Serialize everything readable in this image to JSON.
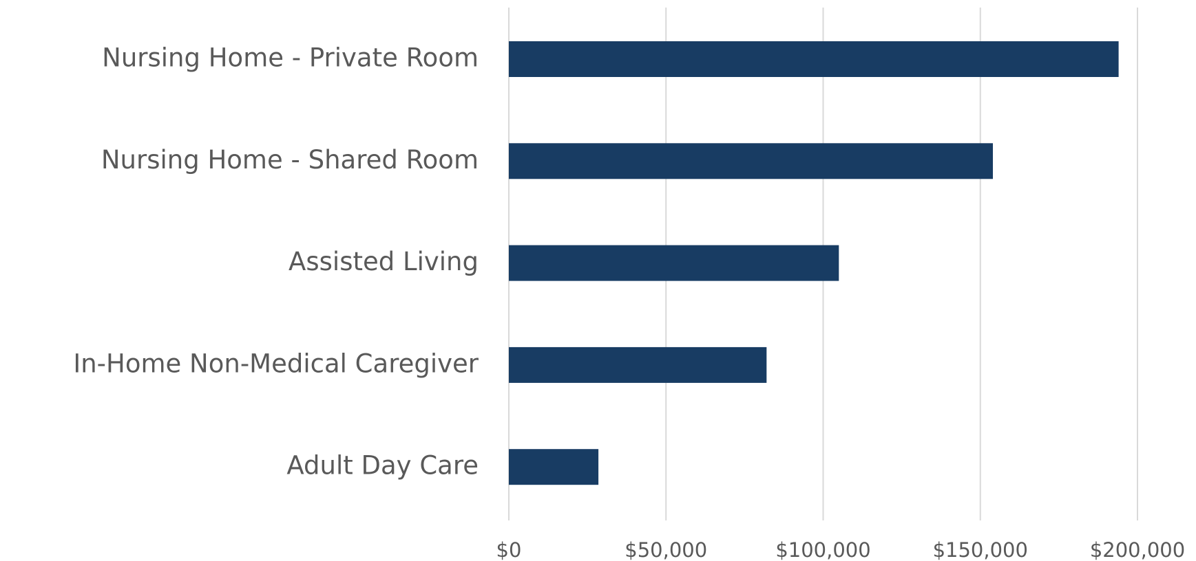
{
  "chart_data": {
    "type": "bar",
    "orientation": "horizontal",
    "categories": [
      "Nursing Home - Private Room",
      "Nursing Home - Shared Room",
      "Assisted Living",
      "In-Home Non-Medical Caregiver",
      "Adult Day Care"
    ],
    "values": [
      194000,
      154000,
      105000,
      82000,
      28500
    ],
    "color": "#183c63",
    "xlim": [
      0,
      200000
    ],
    "xticks": [
      {
        "value": 0,
        "label": "$0"
      },
      {
        "value": 50000,
        "label": "$50,000"
      },
      {
        "value": 100000,
        "label": "$100,000"
      },
      {
        "value": 150000,
        "label": "$150,000"
      },
      {
        "value": 200000,
        "label": "$200,000"
      }
    ],
    "grid": true
  }
}
